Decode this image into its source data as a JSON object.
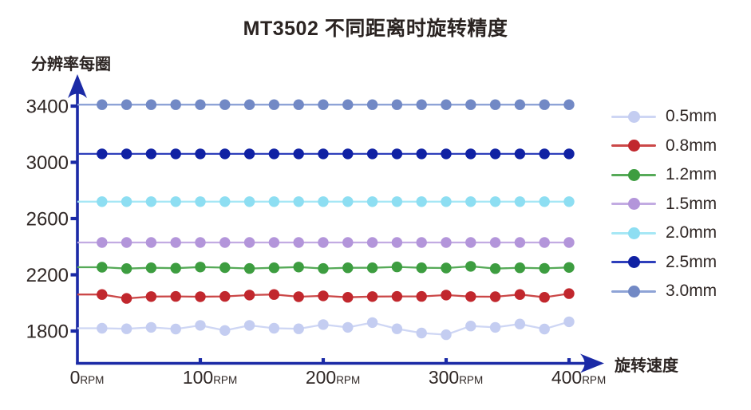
{
  "chart_data": {
    "type": "line",
    "title": "MT3502 不同距离时旋转精度",
    "ylabel": "分辨率每圈",
    "xlabel": "旋转速度",
    "x_unit": "RPM",
    "x_ticks": [
      0,
      100,
      200,
      300,
      400
    ],
    "y_ticks": [
      1800,
      2200,
      2600,
      3000,
      3400
    ],
    "xlim": [
      0,
      400
    ],
    "ylim": [
      1760,
      3480
    ],
    "grid": false,
    "legend_position": "right",
    "x": [
      20,
      40,
      60,
      80,
      100,
      120,
      140,
      160,
      180,
      200,
      220,
      240,
      260,
      280,
      300,
      320,
      340,
      360,
      380,
      400
    ],
    "series": [
      {
        "name": "0.5mm",
        "dot_color": "#c4cdf1",
        "line_color": "#ced6f4",
        "values": [
          1820,
          1816,
          1826,
          1814,
          1840,
          1804,
          1840,
          1820,
          1816,
          1846,
          1826,
          1860,
          1816,
          1786,
          1774,
          1836,
          1826,
          1850,
          1814,
          1866
        ]
      },
      {
        "name": "0.8mm",
        "dot_color": "#c1272d",
        "line_color": "#cb4848",
        "values": [
          2060,
          2032,
          2045,
          2046,
          2044,
          2046,
          2056,
          2060,
          2044,
          2050,
          2040,
          2045,
          2046,
          2046,
          2056,
          2045,
          2044,
          2060,
          2040,
          2066
        ]
      },
      {
        "name": "1.2mm",
        "dot_color": "#3d9d40",
        "line_color": "#56aa58",
        "values": [
          2254,
          2244,
          2250,
          2247,
          2255,
          2251,
          2245,
          2250,
          2255,
          2245,
          2250,
          2250,
          2256,
          2250,
          2248,
          2260,
          2244,
          2250,
          2246,
          2252
        ]
      },
      {
        "name": "1.5mm",
        "dot_color": "#b395da",
        "line_color": "#c2abe2",
        "values": [
          2430,
          2430,
          2430,
          2430,
          2430,
          2430,
          2430,
          2430,
          2430,
          2430,
          2430,
          2430,
          2430,
          2430,
          2430,
          2430,
          2430,
          2430,
          2430,
          2430
        ]
      },
      {
        "name": "2.0mm",
        "dot_color": "#8ddef2",
        "line_color": "#a6e7f5",
        "values": [
          2720,
          2720,
          2720,
          2720,
          2720,
          2720,
          2720,
          2720,
          2720,
          2720,
          2720,
          2720,
          2720,
          2720,
          2720,
          2720,
          2720,
          2720,
          2720,
          2720
        ]
      },
      {
        "name": "2.5mm",
        "dot_color": "#1021a3",
        "line_color": "#2e3fbb",
        "values": [
          3060,
          3060,
          3060,
          3060,
          3060,
          3060,
          3060,
          3060,
          3060,
          3060,
          3060,
          3060,
          3060,
          3060,
          3060,
          3060,
          3060,
          3060,
          3060,
          3060
        ]
      },
      {
        "name": "3.0mm",
        "dot_color": "#7289c5",
        "line_color": "#8ea3d6",
        "values": [
          3410,
          3410,
          3410,
          3410,
          3410,
          3410,
          3410,
          3410,
          3410,
          3410,
          3410,
          3410,
          3410,
          3410,
          3410,
          3410,
          3410,
          3410,
          3410,
          3410
        ]
      }
    ],
    "colors": {
      "axis": "#1b2aa6",
      "text": "#2f2725",
      "title_text": "#2b2422",
      "background": "#ffffff"
    }
  }
}
